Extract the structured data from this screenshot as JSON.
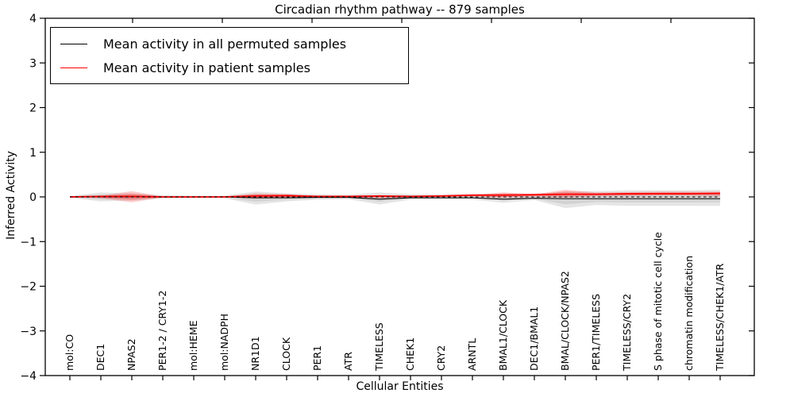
{
  "title": "Circadian rhythm pathway -- 879 samples",
  "axes": {
    "x_label": "Cellular Entities",
    "y_label": "Inferred Activity",
    "y_tick_labels": [
      "4",
      "3",
      "2",
      "1",
      "0",
      "−1",
      "−2",
      "−3",
      "−4"
    ],
    "y_tick_values": [
      4,
      3,
      2,
      1,
      0,
      -1,
      -2,
      -3,
      -4
    ],
    "ylim": [
      -4,
      4
    ]
  },
  "legend": {
    "entries": [
      {
        "label": "Mean activity in all permuted samples",
        "color": "#000000"
      },
      {
        "label": "Mean activity in patient samples",
        "color": "#ff0000"
      }
    ]
  },
  "colors": {
    "permuted_line": "#000000",
    "patient_line": "#ff0000",
    "permuted_band": "#aaaaaa",
    "patient_band": "#ff0000",
    "frame": "#000000",
    "background": "#ffffff"
  },
  "chart_data": {
    "type": "line",
    "title": "Circadian rhythm pathway -- 879 samples",
    "xlabel": "Cellular Entities",
    "ylabel": "Inferred Activity",
    "ylim": [
      -4,
      4
    ],
    "grid": false,
    "legend_position": "upper left",
    "categories": [
      "mol:CO",
      "DEC1",
      "NPAS2",
      "PER1-2 / CRY1-2",
      "mol:HEME",
      "mol:NADPH",
      "NR1D1",
      "CLOCK",
      "PER1",
      "ATR",
      "TIMELESS",
      "CHEK1",
      "CRY2",
      "ARNTL",
      "BMAL1/CLOCK",
      "DEC1/BMAL1",
      "BMAL/CLOCK/NPAS2",
      "PER1/TIMELESS",
      "TIMELESS/CRY2",
      "S phase of mitotic cell cycle",
      "chromatin modification",
      "TIMELESS/CHEK1/ATR"
    ],
    "series": [
      {
        "name": "Mean activity in all permuted samples",
        "kind": "line",
        "style": "solid",
        "color": "#000000",
        "values": [
          0.0,
          0.0,
          0.0,
          0.0,
          0.0,
          0.0,
          -0.02,
          -0.02,
          -0.01,
          -0.01,
          -0.05,
          -0.02,
          -0.02,
          -0.02,
          -0.05,
          -0.03,
          -0.04,
          -0.04,
          -0.04,
          -0.04,
          -0.04,
          -0.04
        ]
      },
      {
        "name": "Mean activity in patient samples",
        "kind": "line",
        "style": "solid",
        "color": "#ff0000",
        "values": [
          0.0,
          0.01,
          0.01,
          0.0,
          0.0,
          0.0,
          0.02,
          0.03,
          0.01,
          0.01,
          0.02,
          0.01,
          0.02,
          0.04,
          0.04,
          0.05,
          0.06,
          0.06,
          0.07,
          0.07,
          0.07,
          0.08
        ]
      },
      {
        "name": "Permuted samples spread",
        "kind": "band",
        "color": "#aaaaaa",
        "opacity": 0.3,
        "upper": [
          0.02,
          0.1,
          0.08,
          0.04,
          0.03,
          0.03,
          0.12,
          0.08,
          0.06,
          0.05,
          0.1,
          0.06,
          0.06,
          0.06,
          0.08,
          0.07,
          0.12,
          0.13,
          0.15,
          0.15,
          0.15,
          0.16
        ],
        "lower": [
          -0.02,
          -0.1,
          -0.08,
          -0.04,
          -0.03,
          -0.03,
          -0.17,
          -0.1,
          -0.06,
          -0.05,
          -0.17,
          -0.06,
          -0.06,
          -0.06,
          -0.13,
          -0.07,
          -0.25,
          -0.18,
          -0.2,
          -0.2,
          -0.2,
          -0.2
        ]
      },
      {
        "name": "Patient samples spread",
        "kind": "band",
        "color": "#ff0000",
        "opacity": 0.2,
        "upper": [
          0.01,
          0.03,
          0.13,
          0.01,
          0.01,
          0.01,
          0.08,
          0.06,
          0.02,
          0.02,
          0.04,
          0.02,
          0.03,
          0.05,
          0.1,
          0.06,
          0.16,
          0.1,
          0.11,
          0.12,
          0.12,
          0.12
        ],
        "lower": [
          -0.01,
          -0.03,
          -0.12,
          -0.01,
          -0.01,
          -0.01,
          -0.04,
          -0.02,
          -0.01,
          -0.01,
          -0.03,
          -0.01,
          0.0,
          0.01,
          -0.02,
          0.01,
          -0.02,
          0.02,
          0.02,
          0.03,
          0.03,
          0.02
        ]
      },
      {
        "name": "Zero reference",
        "kind": "line",
        "style": "dotted",
        "color": "#000000",
        "values": [
          0,
          0,
          0,
          0,
          0,
          0,
          0,
          0,
          0,
          0,
          0,
          0,
          0,
          0,
          0,
          0,
          0,
          0,
          0,
          0,
          0,
          0
        ]
      }
    ]
  }
}
